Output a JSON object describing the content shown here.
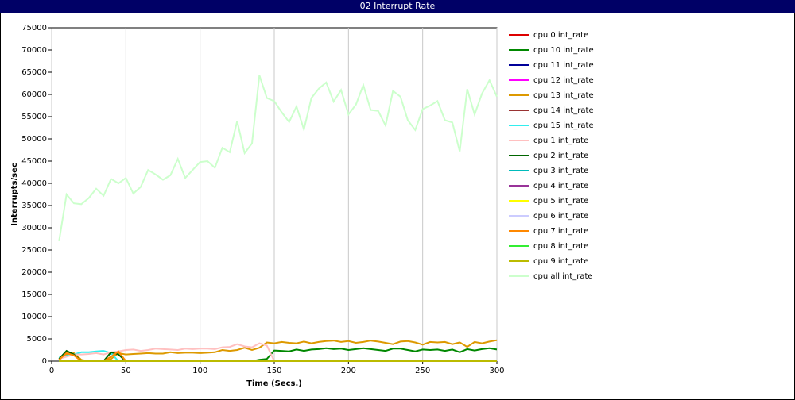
{
  "chart_data": {
    "type": "line",
    "title": "02 Interrupt Rate",
    "x_label": "Time (Secs.)",
    "y_label": "Interrupts/sec",
    "xlim": [
      0,
      300
    ],
    "xticks": [
      0,
      50,
      100,
      150,
      200,
      250,
      300
    ],
    "ylim": [
      0,
      75000
    ],
    "yticks": [
      0,
      5000,
      10000,
      15000,
      20000,
      25000,
      30000,
      35000,
      40000,
      45000,
      50000,
      55000,
      60000,
      65000,
      70000,
      75000
    ],
    "grid": "x",
    "legend": "right",
    "x": [
      5,
      10,
      15,
      20,
      25,
      30,
      35,
      40,
      45,
      50,
      55,
      60,
      65,
      70,
      75,
      80,
      85,
      90,
      95,
      100,
      105,
      110,
      115,
      120,
      125,
      130,
      135,
      140,
      145,
      150,
      155,
      160,
      165,
      170,
      175,
      180,
      185,
      190,
      195,
      200,
      205,
      210,
      215,
      220,
      225,
      230,
      235,
      240,
      245,
      250,
      255,
      260,
      265,
      270,
      275,
      280,
      285,
      290,
      295,
      300
    ],
    "series": [
      {
        "name": "cpu 0 int_rate",
        "color": "#dd0000",
        "values": [
          0,
          0,
          0,
          0,
          0,
          0,
          0,
          0,
          0,
          0,
          0,
          0,
          0,
          0,
          0,
          0,
          0,
          0,
          0,
          0,
          0,
          0,
          0,
          0,
          0,
          0,
          0,
          0,
          0,
          0,
          0,
          0,
          0,
          0,
          0,
          0,
          0,
          0,
          0,
          0,
          0,
          0,
          0,
          0,
          0,
          0,
          0,
          0,
          0,
          0,
          0,
          0,
          0,
          0,
          0,
          0,
          0,
          0,
          0,
          0
        ]
      },
      {
        "name": "cpu 10 int_rate",
        "color": "#008800",
        "values": [
          0,
          0,
          0,
          0,
          0,
          0,
          0,
          0,
          0,
          0,
          0,
          0,
          0,
          0,
          0,
          0,
          0,
          0,
          0,
          0,
          0,
          0,
          0,
          0,
          0,
          0,
          0,
          300,
          500,
          2400,
          2300,
          2200,
          2600,
          2300,
          2600,
          2700,
          2900,
          2700,
          2800,
          2500,
          2700,
          2900,
          2700,
          2500,
          2300,
          2800,
          2800,
          2500,
          2200,
          2600,
          2500,
          2600,
          2300,
          2600,
          2000,
          2700,
          2400,
          2700,
          2900,
          2600
        ]
      },
      {
        "name": "cpu 11 int_rate",
        "color": "#000099",
        "values": [
          0,
          0,
          0,
          0,
          0,
          0,
          0,
          0,
          0,
          0,
          0,
          0,
          0,
          0,
          0,
          0,
          0,
          0,
          0,
          0,
          0,
          0,
          0,
          0,
          0,
          0,
          0,
          0,
          0,
          0,
          0,
          0,
          0,
          0,
          0,
          0,
          0,
          0,
          0,
          0,
          0,
          0,
          0,
          0,
          0,
          0,
          0,
          0,
          0,
          0,
          0,
          0,
          0,
          0,
          0,
          0,
          0,
          0,
          0,
          0
        ]
      },
      {
        "name": "cpu 12 int_rate",
        "color": "#ff00ff",
        "values": [
          0,
          0,
          0,
          0,
          0,
          0,
          0,
          0,
          0,
          0,
          0,
          0,
          0,
          0,
          0,
          0,
          0,
          0,
          0,
          0,
          0,
          0,
          0,
          0,
          0,
          0,
          0,
          0,
          0,
          0,
          0,
          0,
          0,
          0,
          0,
          0,
          0,
          0,
          0,
          0,
          0,
          0,
          0,
          0,
          0,
          0,
          0,
          0,
          0,
          0,
          0,
          0,
          0,
          0,
          0,
          0,
          0,
          0,
          0,
          0
        ]
      },
      {
        "name": "cpu 13 int_rate",
        "color": "#dd9900",
        "values": [
          300,
          1500,
          1800,
          300,
          0,
          0,
          0,
          500,
          1800,
          1500,
          1600,
          1700,
          1800,
          1700,
          1700,
          2000,
          1800,
          1900,
          1900,
          1800,
          1900,
          2000,
          2500,
          2300,
          2500,
          3000,
          2500,
          3000,
          4200,
          4000,
          4300,
          4100,
          4000,
          4400,
          4000,
          4300,
          4500,
          4600,
          4300,
          4500,
          4100,
          4300,
          4600,
          4400,
          4100,
          3800,
          4400,
          4500,
          4200,
          3700,
          4300,
          4200,
          4300,
          3800,
          4200,
          3200,
          4300,
          4000,
          4400,
          4700
        ]
      },
      {
        "name": "cpu 14 int_rate",
        "color": "#993333",
        "values": [
          0,
          0,
          0,
          0,
          0,
          0,
          0,
          0,
          0,
          0,
          0,
          0,
          0,
          0,
          0,
          0,
          0,
          0,
          0,
          0,
          0,
          0,
          0,
          0,
          0,
          0,
          0,
          0,
          0,
          0,
          0,
          0,
          0,
          0,
          0,
          0,
          0,
          0,
          0,
          0,
          0,
          0,
          0,
          0,
          0,
          0,
          0,
          0,
          0,
          0,
          0,
          0,
          0,
          0,
          0,
          0,
          0,
          0,
          0,
          0
        ]
      },
      {
        "name": "cpu 15 int_rate",
        "color": "#33eeee",
        "values": [
          800,
          1200,
          1500,
          2000,
          2000,
          2200,
          2300,
          1800,
          0,
          0,
          0,
          0,
          0,
          0,
          0,
          0,
          0,
          0,
          0,
          0,
          0,
          0,
          0,
          0,
          0,
          0,
          0,
          0,
          0,
          0,
          0,
          0,
          0,
          0,
          0,
          0,
          0,
          0,
          0,
          0,
          0,
          0,
          0,
          0,
          0,
          0,
          0,
          0,
          0,
          0,
          0,
          0,
          0,
          0,
          0,
          0,
          0,
          0,
          0,
          0
        ]
      },
      {
        "name": "cpu 1 int_rate",
        "color": "#ffc0c0",
        "values": [
          500,
          1000,
          1500,
          1500,
          1600,
          1800,
          1500,
          2000,
          2200,
          2500,
          2600,
          2300,
          2500,
          2800,
          2700,
          2600,
          2500,
          2800,
          2700,
          2800,
          2800,
          2700,
          3100,
          3200,
          3800,
          3300,
          3100,
          4000,
          3500,
          0,
          0,
          0,
          0,
          0,
          0,
          0,
          0,
          0,
          0,
          0,
          0,
          0,
          0,
          0,
          0,
          0,
          0,
          0,
          0,
          0,
          0,
          0,
          0,
          0,
          0,
          0,
          0,
          0,
          0,
          0
        ]
      },
      {
        "name": "cpu 2 int_rate",
        "color": "#006600",
        "values": [
          500,
          2300,
          1500,
          0,
          0,
          0,
          0,
          2000,
          1500,
          0,
          0,
          0,
          0,
          0,
          0,
          0,
          0,
          0,
          0,
          0,
          0,
          0,
          0,
          0,
          0,
          0,
          0,
          0,
          0,
          0,
          0,
          0,
          0,
          0,
          0,
          0,
          0,
          0,
          0,
          0,
          0,
          0,
          0,
          0,
          0,
          0,
          0,
          0,
          0,
          0,
          0,
          0,
          0,
          0,
          0,
          0,
          0,
          0,
          0,
          0
        ]
      },
      {
        "name": "cpu 3 int_rate",
        "color": "#00bbbb",
        "values": [
          0,
          0,
          0,
          0,
          0,
          0,
          0,
          0,
          0,
          0,
          0,
          0,
          0,
          0,
          0,
          0,
          0,
          0,
          0,
          0,
          0,
          0,
          0,
          0,
          0,
          0,
          0,
          0,
          0,
          0,
          0,
          0,
          0,
          0,
          0,
          0,
          0,
          0,
          0,
          0,
          0,
          0,
          0,
          0,
          0,
          0,
          0,
          0,
          0,
          0,
          0,
          0,
          0,
          0,
          0,
          0,
          0,
          0,
          0,
          0
        ]
      },
      {
        "name": "cpu 4 int_rate",
        "color": "#993399",
        "values": [
          0,
          0,
          0,
          0,
          0,
          0,
          0,
          0,
          0,
          0,
          0,
          0,
          0,
          0,
          0,
          0,
          0,
          0,
          0,
          0,
          0,
          0,
          0,
          0,
          0,
          0,
          0,
          0,
          0,
          0,
          0,
          0,
          0,
          0,
          0,
          0,
          0,
          0,
          0,
          0,
          0,
          0,
          0,
          0,
          0,
          0,
          0,
          0,
          0,
          0,
          0,
          0,
          0,
          0,
          0,
          0,
          0,
          0,
          0,
          0
        ]
      },
      {
        "name": "cpu 5 int_rate",
        "color": "#ffff00",
        "values": [
          0,
          0,
          0,
          0,
          0,
          0,
          0,
          0,
          0,
          0,
          0,
          0,
          0,
          0,
          0,
          0,
          0,
          0,
          0,
          0,
          0,
          0,
          0,
          0,
          0,
          0,
          0,
          0,
          0,
          0,
          0,
          0,
          0,
          0,
          0,
          0,
          0,
          0,
          0,
          0,
          0,
          0,
          0,
          0,
          0,
          0,
          0,
          0,
          0,
          0,
          0,
          0,
          0,
          0,
          0,
          0,
          0,
          0,
          0,
          0
        ]
      },
      {
        "name": "cpu 6 int_rate",
        "color": "#ccccff",
        "values": [
          0,
          0,
          0,
          0,
          0,
          0,
          0,
          0,
          0,
          0,
          0,
          0,
          0,
          0,
          0,
          0,
          0,
          0,
          0,
          0,
          0,
          0,
          0,
          0,
          0,
          0,
          0,
          0,
          0,
          0,
          0,
          0,
          0,
          0,
          0,
          0,
          0,
          0,
          0,
          0,
          0,
          0,
          0,
          0,
          0,
          0,
          0,
          0,
          0,
          0,
          0,
          0,
          0,
          0,
          0,
          0,
          0,
          0,
          0,
          0
        ]
      },
      {
        "name": "cpu 7 int_rate",
        "color": "#ff8800",
        "values": [
          300,
          1800,
          1300,
          0,
          0,
          0,
          0,
          1000,
          2200,
          0,
          0,
          0,
          0,
          0,
          0,
          0,
          0,
          0,
          0,
          0,
          0,
          0,
          0,
          0,
          0,
          0,
          0,
          0,
          0,
          0,
          0,
          0,
          0,
          0,
          0,
          0,
          0,
          0,
          0,
          0,
          0,
          0,
          0,
          0,
          0,
          0,
          0,
          0,
          0,
          0,
          0,
          0,
          0,
          0,
          0,
          0,
          0,
          0,
          0,
          0
        ]
      },
      {
        "name": "cpu 8 int_rate",
        "color": "#33ee33",
        "values": [
          0,
          0,
          0,
          0,
          0,
          0,
          0,
          0,
          0,
          0,
          0,
          0,
          0,
          0,
          0,
          0,
          0,
          0,
          0,
          0,
          0,
          0,
          0,
          0,
          0,
          0,
          0,
          0,
          0,
          0,
          0,
          0,
          0,
          0,
          0,
          0,
          0,
          0,
          0,
          0,
          0,
          0,
          0,
          0,
          0,
          0,
          0,
          0,
          0,
          0,
          0,
          0,
          0,
          0,
          0,
          0,
          0,
          0,
          0,
          0
        ]
      },
      {
        "name": "cpu 9 int_rate",
        "color": "#bbbb00",
        "values": [
          0,
          0,
          0,
          0,
          0,
          0,
          0,
          0,
          0,
          0,
          0,
          0,
          0,
          0,
          0,
          0,
          0,
          0,
          0,
          0,
          0,
          0,
          0,
          0,
          0,
          0,
          0,
          0,
          0,
          0,
          0,
          0,
          0,
          0,
          0,
          0,
          0,
          0,
          0,
          0,
          0,
          0,
          0,
          0,
          0,
          0,
          0,
          0,
          0,
          0,
          0,
          0,
          0,
          0,
          0,
          0,
          0,
          0,
          0,
          0
        ]
      },
      {
        "name": "cpu all int_rate",
        "color": "#ccffcc",
        "values": [
          27000,
          37500,
          35500,
          35300,
          36700,
          38800,
          37200,
          41000,
          40000,
          41200,
          37700,
          39200,
          43000,
          42000,
          40800,
          41800,
          45500,
          41200,
          43000,
          44800,
          45000,
          43500,
          48000,
          47000,
          54000,
          46800,
          49000,
          64300,
          59200,
          58500,
          56000,
          53800,
          57300,
          52100,
          59200,
          61300,
          62700,
          58400,
          61000,
          55500,
          57700,
          62100,
          56500,
          56300,
          53000,
          60800,
          59500,
          54200,
          52000,
          56700,
          57500,
          58500,
          54200,
          53700,
          47200,
          61200,
          55500,
          60200,
          63200,
          59500
        ]
      }
    ]
  }
}
